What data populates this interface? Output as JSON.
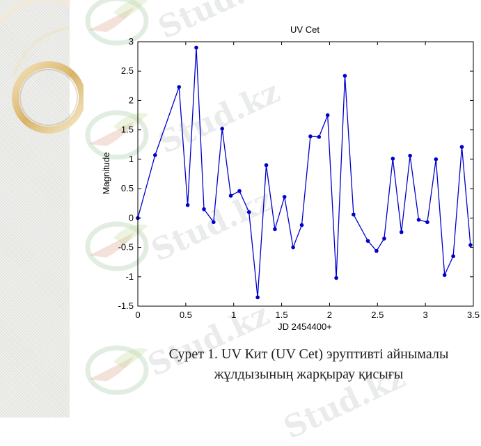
{
  "chart_data": {
    "type": "line",
    "title": "UV Cet",
    "xlabel": "JD 2454400+",
    "ylabel": "Magnitude",
    "xlim": [
      0,
      3.5
    ],
    "ylim": [
      -1.5,
      3
    ],
    "xticks": [
      "0",
      "0.5",
      "1",
      "1.5",
      "2",
      "2.5",
      "3",
      "3.5"
    ],
    "yticks": [
      "3",
      "2.5",
      "2",
      "1.5",
      "1",
      "0.5",
      "0",
      "-0.5",
      "-1",
      "-1.5"
    ],
    "grid": false,
    "series_color": "#0000cc",
    "x": [
      0.0,
      0.18,
      0.43,
      0.52,
      0.61,
      0.69,
      0.79,
      0.88,
      0.97,
      1.06,
      1.16,
      1.25,
      1.34,
      1.43,
      1.53,
      1.62,
      1.71,
      1.8,
      1.89,
      1.98,
      2.07,
      2.16,
      2.25,
      2.4,
      2.49,
      2.57,
      2.66,
      2.75,
      2.84,
      2.93,
      3.02,
      3.11,
      3.2,
      3.29,
      3.38,
      3.47
    ],
    "y": [
      0.0,
      1.07,
      2.23,
      0.22,
      2.9,
      0.15,
      -0.07,
      1.52,
      0.38,
      0.46,
      0.1,
      -1.35,
      0.9,
      -0.19,
      0.36,
      -0.5,
      -0.12,
      1.39,
      1.38,
      1.75,
      -1.02,
      2.42,
      0.06,
      -0.39,
      -0.56,
      -0.35,
      1.01,
      -0.24,
      1.06,
      -0.03,
      -0.07,
      1.0,
      -0.97,
      -0.65,
      1.21,
      -0.46
    ]
  },
  "watermark": "Stud.kz",
  "caption": {
    "line1": "Сурет 1. UV Кит (UV Cet) эруптивті айнымалы",
    "line2": "жұлдызының жарқырау қисығы"
  }
}
